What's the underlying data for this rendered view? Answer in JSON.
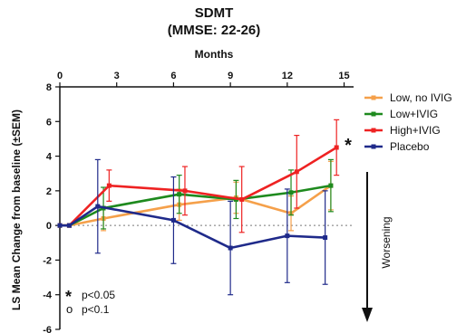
{
  "chart_data": {
    "type": "line",
    "title": "SDMT",
    "subtitle": "(MMSE: 22-26)",
    "xlabel": "Months",
    "ylabel": "LS Mean Change from baseline (±SEM)",
    "xlim": [
      0,
      15.5
    ],
    "ylim": [
      -6,
      8
    ],
    "xticks": [
      0,
      3,
      6,
      9,
      12,
      15
    ],
    "yticks": [
      -6,
      -4,
      -2,
      0,
      2,
      4,
      6,
      8
    ],
    "grid": false,
    "reference_line": 0,
    "legend_position": "right",
    "series": [
      {
        "name": "Low, no IVIG",
        "color": "#f5a04a",
        "x": [
          0,
          0.5,
          2.3,
          6.3,
          9.3,
          12.2,
          14.3
        ],
        "y": [
          0,
          0,
          0.4,
          1.2,
          1.6,
          0.7,
          2.3
        ],
        "err": [
          0,
          0,
          0.7,
          0.9,
          0.9,
          1.0,
          1.4
        ],
        "stars": []
      },
      {
        "name": "Low+IVIG",
        "color": "#1e8a1e",
        "x": [
          0,
          0.5,
          2.3,
          6.3,
          9.3,
          12.2,
          14.3
        ],
        "y": [
          0,
          0,
          1.0,
          1.8,
          1.5,
          1.9,
          2.3
        ],
        "err": [
          0,
          0,
          1.2,
          1.1,
          1.1,
          1.3,
          1.5
        ],
        "stars": []
      },
      {
        "name": "High+IVIG",
        "color": "#ee2222",
        "x": [
          0,
          0.5,
          2.6,
          6.6,
          9.6,
          12.5,
          14.6
        ],
        "y": [
          0,
          0,
          2.3,
          2.0,
          1.5,
          3.1,
          4.5
        ],
        "err": [
          0,
          0,
          0.9,
          1.4,
          1.9,
          2.1,
          1.6
        ],
        "stars": [
          6
        ]
      },
      {
        "name": "Placebo",
        "color": "#1f2a8a",
        "x": [
          0,
          0.5,
          2.0,
          6.0,
          9.0,
          12.0,
          14.0
        ],
        "y": [
          0,
          0,
          1.1,
          0.3,
          -1.3,
          -0.6,
          -0.7
        ],
        "err": [
          0,
          0,
          2.7,
          2.5,
          2.7,
          2.7,
          2.7
        ],
        "stars": []
      }
    ],
    "annotations": {
      "star_symbol": "*",
      "note_star": "*",
      "note_star_text": "p<0.05",
      "note_circle": "o",
      "note_circle_text": "p<0.1",
      "worsening": "Worsening"
    }
  }
}
